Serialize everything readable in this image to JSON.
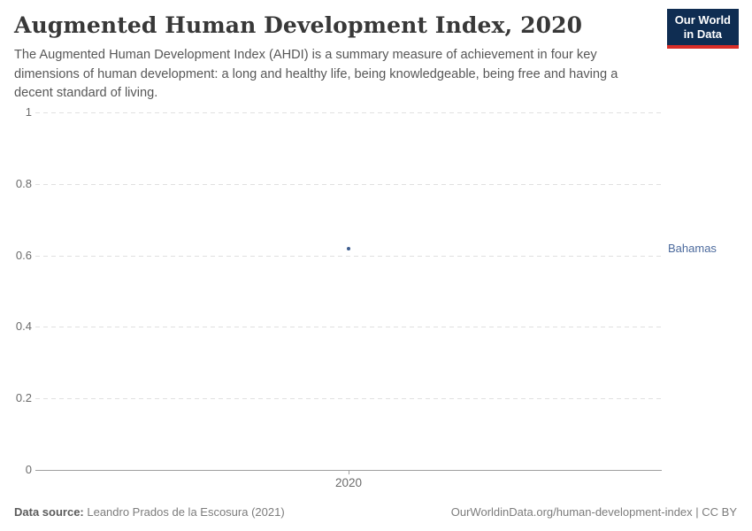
{
  "header": {
    "title": "Augmented Human Development Index, 2020",
    "subtitle": "The Augmented Human Development Index (AHDI) is a summary measure of achievement in four key dimensions of human development: a long and healthy life, being knowledgeable, being free and having a decent standard of living.",
    "logo": {
      "line1": "Our World",
      "line2": "in Data",
      "bg": "#0f2d52",
      "accent": "#d92d27"
    }
  },
  "chart_data": {
    "type": "scatter",
    "title": "Augmented Human Development Index, 2020",
    "x": [
      2020
    ],
    "x_tick_labels": [
      "2020"
    ],
    "series": [
      {
        "name": "Bahamas",
        "values": [
          0.62
        ]
      }
    ],
    "entity_label": "Bahamas",
    "ylim": [
      0,
      1
    ],
    "y_ticks": [
      0,
      0.2,
      0.4,
      0.6,
      0.8,
      1
    ],
    "grid": true,
    "legend_position": "right-entity-label",
    "point_color": "#3d5c8e",
    "entity_label_color": "#4c6a9d",
    "gridline_color": "#e0e0e0",
    "axis_color": "#a0a0a0"
  },
  "footer": {
    "source_label": "Data source:",
    "source_text": " Leandro Prados de la Escosura (2021)",
    "right_text": "OurWorldinData.org/human-development-index | CC BY"
  }
}
